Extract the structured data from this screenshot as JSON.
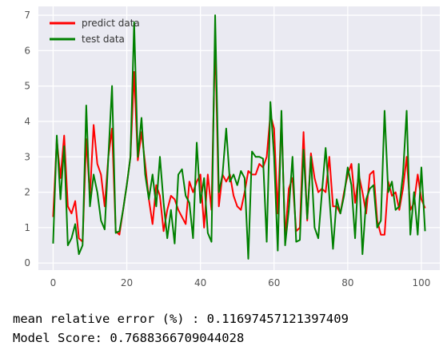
{
  "chart_data": {
    "type": "line",
    "xlim": [
      -4,
      105
    ],
    "ylim": [
      -0.2,
      7.25
    ],
    "x_ticks": [
      0,
      20,
      40,
      60,
      80,
      100
    ],
    "y_ticks": [
      0,
      1,
      2,
      3,
      4,
      5,
      6,
      7
    ],
    "grid": true,
    "legend_position": "top-left",
    "colors": {
      "predict": "#ff0000",
      "test": "#008000",
      "plot_bg": "#eaeaf2",
      "grid": "#ffffff"
    },
    "series": [
      {
        "name": "predict data",
        "color": "#ff0000",
        "values": [
          1.3,
          3.5,
          2.4,
          3.6,
          1.6,
          1.4,
          1.75,
          0.7,
          0.6,
          3.5,
          1.9,
          3.9,
          2.8,
          2.5,
          1.6,
          3.0,
          3.8,
          0.9,
          0.8,
          1.5,
          2.2,
          3.0,
          5.4,
          2.9,
          3.7,
          2.8,
          1.8,
          1.1,
          2.2,
          1.9,
          0.9,
          1.5,
          1.9,
          1.8,
          1.5,
          1.3,
          1.1,
          2.3,
          2.0,
          2.3,
          2.5,
          1.0,
          2.5,
          1.5,
          6.4,
          1.6,
          2.5,
          2.3,
          2.5,
          1.9,
          1.6,
          1.5,
          2.0,
          2.6,
          2.5,
          2.5,
          2.8,
          2.7,
          3.0,
          4.2,
          3.8,
          1.4,
          4.1,
          0.7,
          2.1,
          2.4,
          0.9,
          1.0,
          3.7,
          1.2,
          3.1,
          2.4,
          2.0,
          2.1,
          2.0,
          3.0,
          1.6,
          1.6,
          1.4,
          2.0,
          2.5,
          2.8,
          1.7,
          2.5,
          2.0,
          1.4,
          2.5,
          2.6,
          1.2,
          0.8,
          0.8,
          2.3,
          1.9,
          2.0,
          1.5,
          2.1,
          3.0,
          1.5,
          1.7,
          2.5,
          1.8,
          1.55
        ]
      },
      {
        "name": "test data",
        "color": "#008000",
        "values": [
          0.55,
          3.6,
          1.8,
          3.3,
          0.5,
          0.7,
          1.1,
          0.25,
          0.5,
          4.45,
          1.6,
          2.5,
          2.0,
          1.2,
          0.95,
          3.0,
          5.0,
          0.85,
          0.9,
          1.5,
          2.2,
          3.0,
          6.8,
          3.0,
          4.1,
          2.5,
          1.8,
          2.5,
          1.6,
          3.0,
          1.7,
          0.7,
          1.5,
          0.55,
          2.5,
          2.65,
          1.9,
          1.7,
          0.7,
          3.4,
          1.7,
          2.4,
          0.85,
          0.6,
          7.0,
          2.0,
          2.5,
          3.8,
          2.3,
          2.5,
          2.2,
          2.6,
          2.4,
          0.12,
          3.15,
          3.0,
          3.0,
          2.95,
          0.6,
          4.55,
          3.0,
          0.35,
          4.3,
          0.5,
          1.5,
          3.0,
          0.6,
          0.65,
          3.2,
          1.25,
          3.0,
          1.0,
          0.7,
          2.0,
          3.25,
          1.9,
          0.4,
          1.8,
          1.4,
          1.9,
          2.7,
          2.2,
          0.7,
          2.8,
          0.25,
          1.8,
          2.1,
          2.2,
          1.0,
          1.2,
          4.3,
          2.0,
          2.3,
          1.5,
          1.6,
          2.5,
          4.3,
          0.8,
          2.0,
          0.8,
          2.7,
          0.9
        ]
      }
    ]
  },
  "console": {
    "line1": "mean relative error (%) : 0.11697457121397409",
    "line2": "Model Score: 0.7688366709044028"
  }
}
